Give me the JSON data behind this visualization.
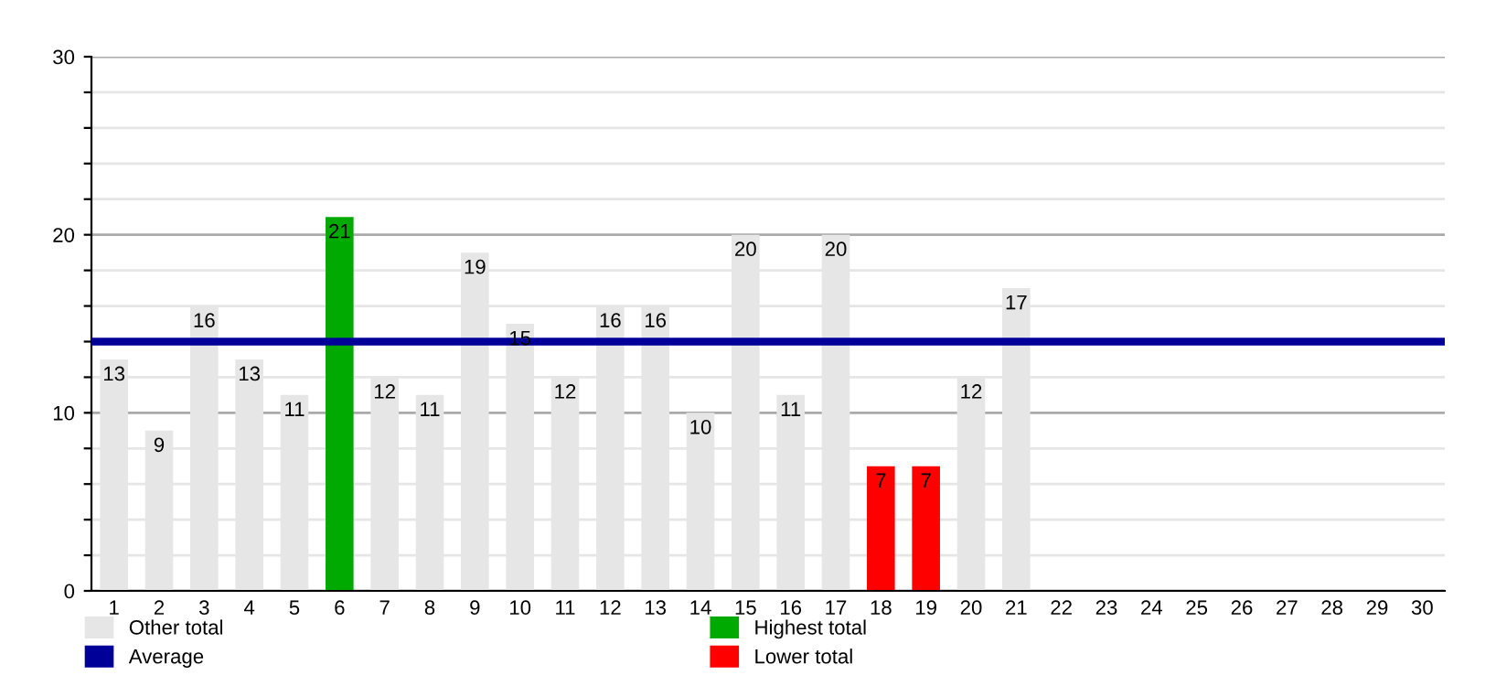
{
  "chart_data": {
    "type": "bar",
    "categories": [
      "1",
      "2",
      "3",
      "4",
      "5",
      "6",
      "7",
      "8",
      "9",
      "10",
      "11",
      "12",
      "13",
      "14",
      "15",
      "16",
      "17",
      "18",
      "19",
      "20",
      "21",
      "22",
      "23",
      "24",
      "25",
      "26",
      "27",
      "28",
      "29",
      "30"
    ],
    "series": [
      {
        "name": "Other total",
        "color": "#e6e6e6",
        "values": [
          13,
          9,
          16,
          13,
          11,
          null,
          12,
          11,
          19,
          15,
          12,
          16,
          16,
          10,
          20,
          11,
          20,
          null,
          null,
          12,
          17,
          null,
          null,
          null,
          null,
          null,
          null,
          null,
          null,
          null
        ]
      },
      {
        "name": "Highest total",
        "color": "#00aa00",
        "values": [
          null,
          null,
          null,
          null,
          null,
          21,
          null,
          null,
          null,
          null,
          null,
          null,
          null,
          null,
          null,
          null,
          null,
          null,
          null,
          null,
          null,
          null,
          null,
          null,
          null,
          null,
          null,
          null,
          null,
          null
        ]
      },
      {
        "name": "Lower total",
        "color": "#ff0000",
        "values": [
          null,
          null,
          null,
          null,
          null,
          null,
          null,
          null,
          null,
          null,
          null,
          null,
          null,
          null,
          null,
          null,
          null,
          7,
          7,
          null,
          null,
          null,
          null,
          null,
          null,
          null,
          null,
          null,
          null,
          null
        ]
      }
    ],
    "data_labels": true,
    "ref_lines": [
      {
        "axis": "y",
        "value": 14,
        "label": "Average",
        "color": "#000099"
      }
    ],
    "ylim": [
      0,
      30
    ],
    "yticks": [
      0,
      {
        "value": 2,
        "label": null
      },
      {
        "value": 4,
        "label": null
      },
      {
        "value": 6,
        "label": null
      },
      {
        "value": 8,
        "label": null
      },
      10,
      {
        "value": 12,
        "label": null
      },
      {
        "value": 14,
        "label": null
      },
      {
        "value": 16,
        "label": null
      },
      {
        "value": 18,
        "label": null
      },
      20,
      {
        "value": 22,
        "label": null
      },
      {
        "value": 24,
        "label": null
      },
      {
        "value": 26,
        "label": null
      },
      {
        "value": 28,
        "label": null
      },
      30
    ],
    "grid": "y",
    "legend": "bottom"
  }
}
